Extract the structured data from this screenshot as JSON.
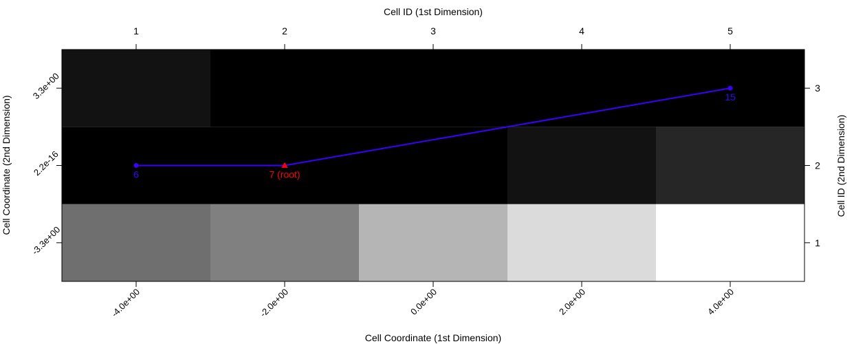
{
  "chart_data": {
    "type": "heatmap",
    "top_axis": {
      "label": "Cell ID (1st Dimension)",
      "ticks": [
        "1",
        "2",
        "3",
        "4",
        "5"
      ]
    },
    "bottom_axis": {
      "label": "Cell Coordinate (1st Dimension)",
      "ticks": [
        "-4.0e+00",
        "-2.0e+00",
        "0.0e+00",
        "2.0e+00",
        "4.0e+00"
      ]
    },
    "left_axis": {
      "label": "Cell Coordinate (2nd Dimension)",
      "ticks": [
        "-3.3e+00",
        "2.2e-16",
        "3.3e+00"
      ]
    },
    "right_axis": {
      "label": "Cell ID (2nd Dimension)",
      "ticks": [
        "1",
        "2",
        "3"
      ]
    },
    "cells": [
      [
        "#6f6f6f",
        "#808080",
        "#b5b5b5",
        "#dbdbdb",
        "#ffffff"
      ],
      [
        "#000000",
        "#000000",
        "#000000",
        "#121212",
        "#262626"
      ],
      [
        "#121212",
        "#000000",
        "#000000",
        "#000000",
        "#000000"
      ]
    ],
    "path": {
      "color": "#3a00ff",
      "root_color": "#ff0000",
      "points": [
        {
          "x": 1,
          "y": 2,
          "label": "6",
          "root": false
        },
        {
          "x": 2,
          "y": 2,
          "label": "7 (root)",
          "root": true
        },
        {
          "x": 5,
          "y": 3,
          "label": "15",
          "root": false
        }
      ]
    }
  }
}
